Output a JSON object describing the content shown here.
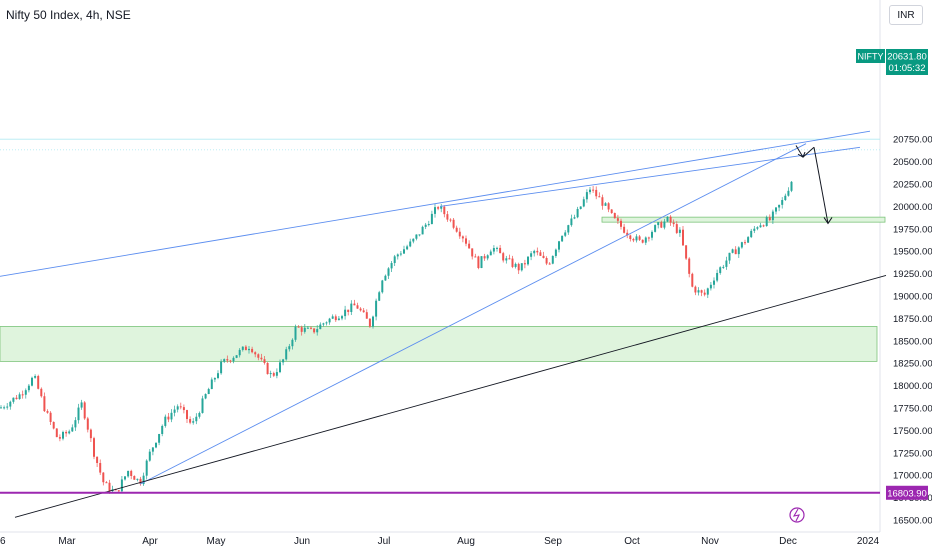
{
  "header": {
    "title": "Nifty 50 Index, 4h, NSE"
  },
  "currency": "INR",
  "symbol_tag": "NIFTY",
  "last_price": "20631.80",
  "countdown": "01:05:32",
  "support_label": "16803.90",
  "colors": {
    "up": "#26a69a",
    "down": "#ef5350",
    "trend": "#5b8def",
    "support": "#9c27b0",
    "zone_fill": "#dff4dd",
    "zone_stroke": "#7cc47a"
  },
  "chart_data": {
    "type": "candlestick",
    "yticks": [
      16500,
      16750,
      17000,
      17250,
      17500,
      17750,
      18000,
      18250,
      18500,
      18750,
      19000,
      19250,
      19500,
      19750,
      20000,
      20250,
      20500,
      20750
    ],
    "ytick_labels": [
      "16500.00",
      "16750.00",
      "17000.00",
      "17250.00",
      "17500.00",
      "17750.00",
      "18000.00",
      "18250.00",
      "18500.00",
      "18750.00",
      "19000.00",
      "19250.00",
      "19500.00",
      "19750.00",
      "20000.00",
      "20250.00",
      "20500.00",
      "20750.00"
    ],
    "xlabels": [
      "6",
      "Mar",
      "Apr",
      "May",
      "Jun",
      "Jul",
      "Aug",
      "Sep",
      "Oct",
      "Nov",
      "Dec",
      "2024"
    ],
    "price_path": [
      [
        0,
        17750
      ],
      [
        20,
        17900
      ],
      [
        34,
        18100
      ],
      [
        46,
        17700
      ],
      [
        58,
        17400
      ],
      [
        70,
        17500
      ],
      [
        82,
        17800
      ],
      [
        94,
        17250
      ],
      [
        104,
        16900
      ],
      [
        116,
        16800
      ],
      [
        128,
        17050
      ],
      [
        140,
        16920
      ],
      [
        150,
        17250
      ],
      [
        164,
        17600
      ],
      [
        178,
        17780
      ],
      [
        192,
        17550
      ],
      [
        206,
        17900
      ],
      [
        222,
        18250
      ],
      [
        236,
        18350
      ],
      [
        250,
        18450
      ],
      [
        262,
        18250
      ],
      [
        272,
        18100
      ],
      [
        284,
        18300
      ],
      [
        296,
        18650
      ],
      [
        312,
        18600
      ],
      [
        326,
        18720
      ],
      [
        340,
        18800
      ],
      [
        356,
        18900
      ],
      [
        370,
        18680
      ],
      [
        382,
        19200
      ],
      [
        396,
        19450
      ],
      [
        412,
        19600
      ],
      [
        426,
        19800
      ],
      [
        438,
        20000
      ],
      [
        450,
        19850
      ],
      [
        464,
        19650
      ],
      [
        478,
        19350
      ],
      [
        492,
        19550
      ],
      [
        506,
        19400
      ],
      [
        520,
        19300
      ],
      [
        534,
        19500
      ],
      [
        548,
        19350
      ],
      [
        562,
        19700
      ],
      [
        576,
        19900
      ],
      [
        590,
        20200
      ],
      [
        602,
        20050
      ],
      [
        614,
        19850
      ],
      [
        628,
        19700
      ],
      [
        640,
        19600
      ],
      [
        654,
        19750
      ],
      [
        668,
        19850
      ],
      [
        680,
        19700
      ],
      [
        692,
        19100
      ],
      [
        704,
        19000
      ],
      [
        716,
        19250
      ],
      [
        730,
        19450
      ],
      [
        744,
        19600
      ],
      [
        758,
        19800
      ],
      [
        770,
        19850
      ],
      [
        782,
        20050
      ],
      [
        792,
        20300
      ]
    ],
    "zones": [
      {
        "from": 18270,
        "to": 18660,
        "x_start": "Feb",
        "x_end": "Dec"
      },
      {
        "from": 19840,
        "to": 19880,
        "x_start": "Oct",
        "x_end": "Dec"
      }
    ],
    "trend_lines": [
      {
        "color": "blue",
        "from": [
          0,
          19220
        ],
        "to": [
          870,
          20840
        ]
      },
      {
        "color": "blue",
        "from": [
          440,
          20000
        ],
        "to": [
          860,
          20660
        ]
      },
      {
        "color": "blue",
        "from": [
          140,
          16900
        ],
        "to": [
          806,
          20700
        ]
      },
      {
        "color": "black",
        "from": [
          15,
          16530
        ],
        "to": [
          886,
          19230
        ]
      }
    ],
    "projection_arrows": [
      {
        "from": [
          796,
          20680
        ],
        "to": [
          803,
          20550
        ]
      },
      {
        "from": [
          803,
          20550
        ],
        "to": [
          814,
          20660
        ]
      },
      {
        "from": [
          814,
          20660
        ],
        "to": [
          828,
          19810
        ]
      }
    ],
    "horizontal_support": 16803.9
  }
}
